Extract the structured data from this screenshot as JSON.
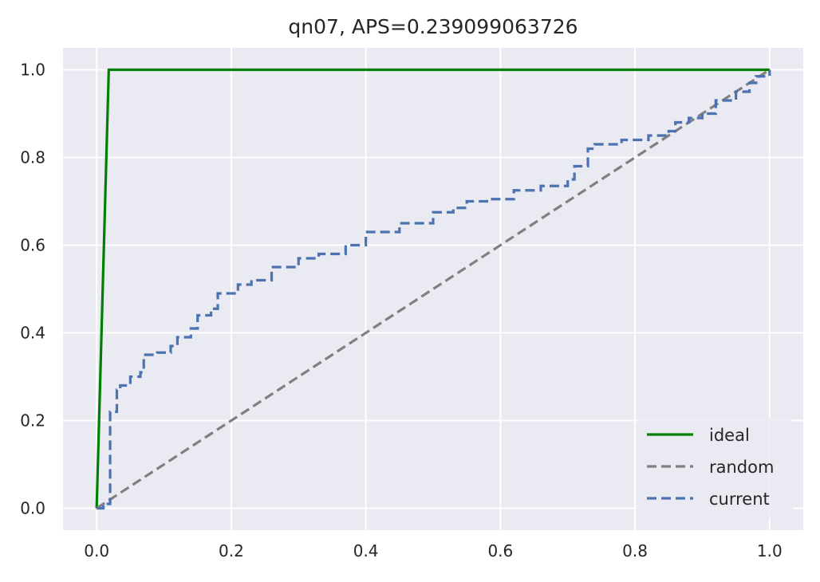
{
  "chart_data": {
    "type": "line",
    "title": "qn07, APS=0.239099063726",
    "xlabel": "",
    "ylabel": "",
    "xlim": [
      -0.05,
      1.05
    ],
    "ylim": [
      -0.05,
      1.05
    ],
    "xticks": [
      "0.0",
      "0.2",
      "0.4",
      "0.6",
      "0.8",
      "1.0"
    ],
    "yticks": [
      "0.0",
      "0.2",
      "0.4",
      "0.6",
      "0.8",
      "1.0"
    ],
    "grid": true,
    "legend_position": "lower-right",
    "series": [
      {
        "name": "ideal",
        "color": "#008000",
        "style": "solid",
        "x": [
          0.0,
          0.018,
          1.0
        ],
        "y": [
          0.0,
          1.0,
          1.0
        ]
      },
      {
        "name": "random",
        "color": "#808080",
        "style": "dashed",
        "x": [
          0.0,
          1.0
        ],
        "y": [
          0.0,
          1.0
        ]
      },
      {
        "name": "current",
        "color": "#4c72b0",
        "style": "dashed",
        "x": [
          0.0,
          0.01,
          0.02,
          0.03,
          0.035,
          0.05,
          0.065,
          0.07,
          0.09,
          0.11,
          0.12,
          0.14,
          0.15,
          0.17,
          0.18,
          0.21,
          0.23,
          0.26,
          0.3,
          0.33,
          0.37,
          0.4,
          0.45,
          0.5,
          0.53,
          0.55,
          0.58,
          0.62,
          0.66,
          0.7,
          0.71,
          0.73,
          0.74,
          0.78,
          0.82,
          0.85,
          0.86,
          0.88,
          0.9,
          0.92,
          0.95,
          0.97,
          0.98,
          1.0
        ],
        "y": [
          0.0,
          0.01,
          0.22,
          0.27,
          0.28,
          0.3,
          0.31,
          0.35,
          0.355,
          0.37,
          0.39,
          0.41,
          0.44,
          0.455,
          0.49,
          0.51,
          0.52,
          0.55,
          0.57,
          0.58,
          0.6,
          0.63,
          0.65,
          0.675,
          0.685,
          0.7,
          0.705,
          0.725,
          0.735,
          0.75,
          0.78,
          0.82,
          0.83,
          0.84,
          0.85,
          0.86,
          0.88,
          0.89,
          0.9,
          0.93,
          0.95,
          0.97,
          0.985,
          1.0
        ]
      }
    ]
  }
}
